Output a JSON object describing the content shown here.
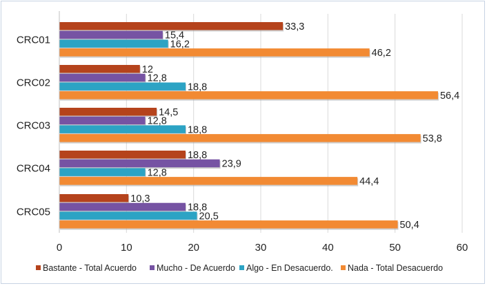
{
  "chart_data": {
    "type": "bar",
    "orientation": "horizontal",
    "categories": [
      "CRC01",
      "CRC02",
      "CRC03",
      "CRC04",
      "CRC05"
    ],
    "series": [
      {
        "name": "Bastante - Total Acuerdo",
        "color": "#b5431c",
        "values": [
          33.3,
          12,
          14.5,
          18.8,
          10.3
        ],
        "labels": [
          "33,3",
          "12",
          "14,5",
          "18,8",
          "10,3"
        ]
      },
      {
        "name": "Mucho - De Acuerdo",
        "color": "#7653a3",
        "values": [
          15.4,
          12.8,
          12.8,
          23.9,
          18.8
        ],
        "labels": [
          "15,4",
          "12,8",
          "12,8",
          "23,9",
          "18,8"
        ]
      },
      {
        "name": "Algo - En Desacuerdo.",
        "color": "#2ca3c4",
        "values": [
          16.2,
          18.8,
          18.8,
          12.8,
          20.5
        ],
        "labels": [
          "16,2",
          "18,8",
          "18,8",
          "12,8",
          "20,5"
        ]
      },
      {
        "name": "Nada - Total Desacuerdo",
        "color": "#f28a33",
        "values": [
          46.2,
          56.4,
          53.8,
          44.4,
          50.4
        ],
        "labels": [
          "46,2",
          "56,4",
          "53,8",
          "44,4",
          "50,4"
        ]
      }
    ],
    "xlim": [
      0,
      60
    ],
    "xticks": [
      0,
      10,
      20,
      30,
      40,
      50,
      60
    ],
    "xtick_labels": [
      "0",
      "10",
      "20",
      "30",
      "40",
      "50",
      "60"
    ],
    "grid": "vertical",
    "legend_position": "bottom"
  }
}
